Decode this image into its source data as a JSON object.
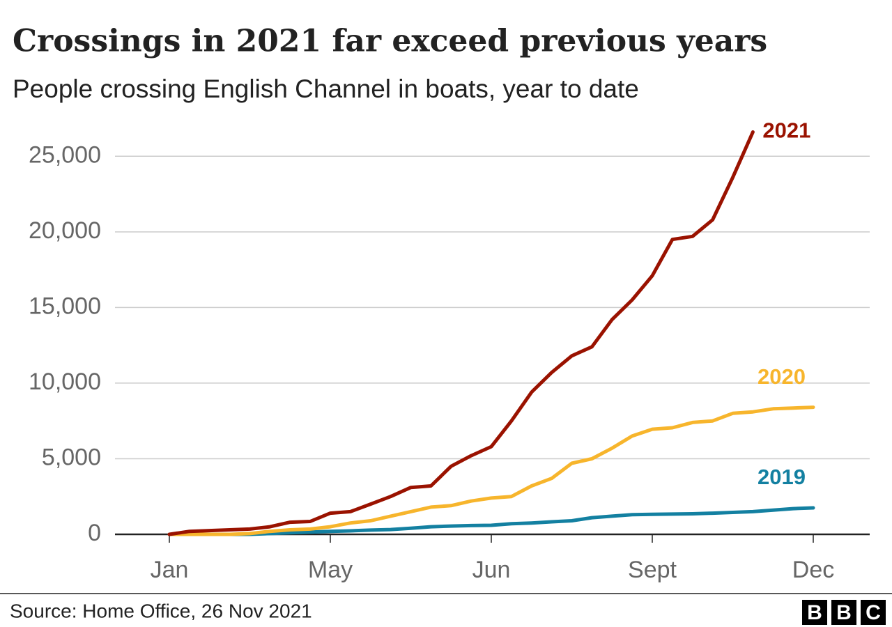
{
  "chart_data": {
    "type": "line",
    "title": "Crossings in 2021 far exceed previous years",
    "subtitle": "People crossing English Channel in boats, year to date",
    "source": "Source: Home Office, 26 Nov 2021",
    "logo": [
      "B",
      "B",
      "C"
    ],
    "categories": [
      "Jan",
      null,
      null,
      null,
      null,
      null,
      null,
      null,
      "May",
      null,
      null,
      null,
      null,
      null,
      null,
      null,
      "Jun",
      null,
      null,
      null,
      null,
      null,
      null,
      null,
      "Sept",
      null,
      null,
      null,
      null,
      null,
      null,
      null,
      "Dec"
    ],
    "series": [
      {
        "name": "2021",
        "color": "#9a1200",
        "values": [
          0,
          200,
          250,
          300,
          350,
          500,
          800,
          850,
          1400,
          1500,
          2000,
          2500,
          3100,
          3200,
          4500,
          5200,
          5800,
          7500,
          9400,
          10700,
          11800,
          12400,
          14200,
          15500,
          17100,
          19500,
          19700,
          20800,
          23600,
          26600,
          null,
          null,
          null
        ]
      },
      {
        "name": "2020",
        "color": "#f7b52c",
        "values": [
          0,
          0,
          0,
          0,
          50,
          200,
          300,
          350,
          500,
          750,
          900,
          1200,
          1500,
          1800,
          1900,
          2200,
          2400,
          2500,
          3200,
          3700,
          4700,
          5000,
          5700,
          6500,
          6950,
          7050,
          7400,
          7500,
          8000,
          8100,
          8300,
          8350,
          8400
        ]
      },
      {
        "name": "2019",
        "color": "#1380a1",
        "values": [
          0,
          0,
          0,
          0,
          0,
          50,
          100,
          150,
          200,
          230,
          280,
          320,
          400,
          500,
          550,
          580,
          600,
          700,
          750,
          830,
          900,
          1100,
          1200,
          1300,
          1320,
          1340,
          1360,
          1400,
          1450,
          1500,
          1600,
          1700,
          1750
        ]
      }
    ],
    "ylim": [
      0,
      27500
    ],
    "yticks": [
      0,
      {
        "value": 5000,
        "label": "5,000"
      },
      {
        "value": 10000,
        "label": "10,000"
      },
      {
        "value": 15000,
        "label": "15,000"
      },
      {
        "value": 20000,
        "label": "20,000"
      },
      {
        "value": 25000,
        "label": "25,000"
      }
    ],
    "grid": true
  }
}
